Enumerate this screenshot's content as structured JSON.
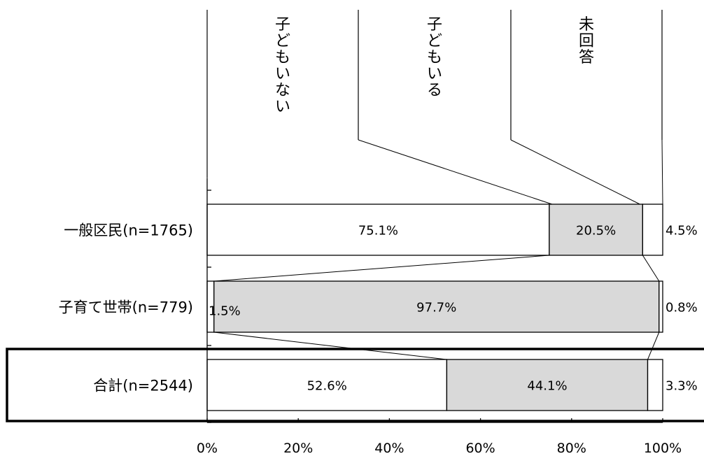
{
  "chart_data": {
    "type": "bar",
    "orientation": "horizontal",
    "stacked": "100%",
    "categories": [
      "一般区民(n=1765)",
      "子育て世帯(n=779)",
      "合計(n=2544)"
    ],
    "series": [
      {
        "name": "子どもいない",
        "values": [
          75.1,
          1.5,
          52.6
        ],
        "labels": [
          "75.1%",
          "1.5%",
          "52.6%"
        ],
        "color": "#ffffff"
      },
      {
        "name": "子どもいる",
        "values": [
          20.5,
          97.7,
          44.1
        ],
        "labels": [
          "20.5%",
          "97.7%",
          "44.1%"
        ],
        "color": "#d9d9d9"
      },
      {
        "name": "未回答",
        "values": [
          4.5,
          0.8,
          3.3
        ],
        "labels": [
          "4.5%",
          "0.8%",
          "3.3%"
        ],
        "color": "#ffffff"
      }
    ],
    "xlim": [
      0,
      100
    ],
    "xticks": [
      "0%",
      "20%",
      "40%",
      "60%",
      "80%",
      "100%"
    ],
    "highlight_category": "合計(n=2544)",
    "legend": "top, vertical text with leader lines",
    "grid": false
  }
}
